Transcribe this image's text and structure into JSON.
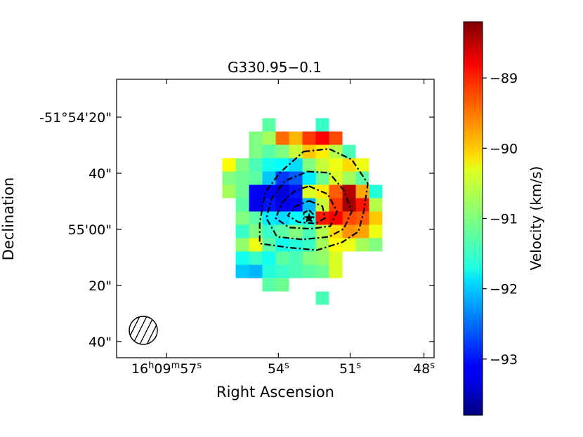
{
  "chart_data": {
    "type": "heatmap",
    "title": "G330.95−0.1",
    "xlabel": "Right Ascension",
    "ylabel": "Declination",
    "colorbar": {
      "label": "Velocity (km/s)",
      "colormap": "jet",
      "vmin": -93.8,
      "vmax": -88.2,
      "ticks": [
        {
          "value": -89,
          "label": "−89"
        },
        {
          "value": -90,
          "label": "−90"
        },
        {
          "value": -91,
          "label": "−91"
        },
        {
          "value": -92,
          "label": "−92"
        },
        {
          "value": -93,
          "label": "−93"
        }
      ]
    },
    "x_ticks": [
      {
        "col": -10.68,
        "label_parts": [
          "16",
          "h",
          "09",
          "m",
          "57",
          "s"
        ]
      },
      {
        "col": -2.3,
        "label_parts": [
          "54",
          "s"
        ]
      },
      {
        "col": 3.08,
        "label_parts": [
          "51",
          "s"
        ]
      },
      {
        "col": 8.61,
        "label_parts": [
          "48",
          "s"
        ]
      }
    ],
    "y_ticks": [
      {
        "row": -7.58,
        "label": "-51°54'20\""
      },
      {
        "row": -3.37,
        "label": "40\""
      },
      {
        "row": 0.84,
        "label": "55'00\""
      },
      {
        "row": 5.05,
        "label": "20\""
      },
      {
        "row": 9.26,
        "label": "40\""
      }
    ],
    "grid": {
      "row_start": -7,
      "col_start": -6,
      "rows": [
        [
          null,
          null,
          null,
          -91.2,
          null,
          null,
          null,
          -91.4,
          null,
          null,
          null,
          null
        ],
        [
          null,
          null,
          -91.0,
          -90.8,
          -89.5,
          -89.9,
          -89.2,
          -88.9,
          -89.3,
          null,
          null,
          null
        ],
        [
          null,
          null,
          -91.0,
          -91.2,
          -91.0,
          -90.6,
          -90.0,
          -90.2,
          -90.7,
          -91.3,
          null,
          null
        ],
        [
          -90.3,
          -91.0,
          -91.3,
          -91.6,
          -91.7,
          -91.9,
          -91.0,
          -90.6,
          -90.4,
          -90.1,
          -90.4,
          null
        ],
        [
          -91.0,
          -91.1,
          -91.2,
          -92.0,
          -92.8,
          -92.6,
          -91.8,
          -91.1,
          -90.5,
          -90.8,
          -91.2,
          null
        ],
        [
          -90.8,
          -91.1,
          -93.1,
          -93.1,
          -93.3,
          -93.0,
          -90.5,
          -90.2,
          -89.4,
          -88.5,
          -89.8,
          -91.5
        ],
        [
          null,
          -91.2,
          -93.2,
          -93.0,
          -93.2,
          -93.1,
          -92.1,
          -90.6,
          -89.2,
          -88.4,
          -89.0,
          -90.7
        ],
        [
          null,
          -91.0,
          -91.2,
          -91.8,
          -91.9,
          -91.7,
          -91.6,
          -89.0,
          -88.9,
          -89.3,
          -89.4,
          -90.0
        ],
        [
          null,
          -91.4,
          -91.0,
          -91.4,
          -91.2,
          -91.0,
          -91.3,
          -90.7,
          -90.1,
          -89.7,
          -89.8,
          -90.4
        ],
        [
          null,
          -90.9,
          -90.4,
          -91.2,
          -91.6,
          -91.5,
          -91.4,
          -90.8,
          -90.3,
          -90.4,
          -90.8,
          -91.0
        ],
        [
          null,
          -91.6,
          -91.4,
          -91.6,
          -91.2,
          -91.3,
          -91.0,
          -90.9,
          -90.5,
          null,
          null,
          null
        ],
        [
          null,
          -92.0,
          -92.1,
          -91.5,
          -91.4,
          -91.3,
          -91.2,
          -91.1,
          -90.5,
          null,
          null,
          null
        ],
        [
          null,
          null,
          null,
          -91.2,
          -91.1,
          null,
          null,
          null,
          null,
          null,
          null,
          null
        ],
        [
          null,
          null,
          null,
          null,
          null,
          null,
          null,
          -91.3,
          null,
          null,
          null,
          null
        ]
      ]
    },
    "contours": [
      [
        [
          -0.4,
          -5
        ],
        [
          1.5,
          -5.2
        ],
        [
          3.2,
          -4.4
        ],
        [
          4.4,
          -2.6
        ],
        [
          4.1,
          -0.5
        ],
        [
          3.7,
          1
        ],
        [
          2.5,
          1.8
        ],
        [
          0.6,
          2.4
        ],
        [
          -1.6,
          2.2
        ],
        [
          -3.7,
          1.9
        ],
        [
          -3.7,
          0.4
        ],
        [
          -3.3,
          -1.9
        ],
        [
          -2.2,
          -3.4
        ]
      ],
      [
        [
          -0.1,
          -3.5
        ],
        [
          1.5,
          -3.4
        ],
        [
          2.6,
          -2.1
        ],
        [
          3.2,
          -0.5
        ],
        [
          2.6,
          0.8
        ],
        [
          1.5,
          1.4
        ],
        [
          -0.5,
          1.6
        ],
        [
          -2.4,
          1.4
        ],
        [
          -3.2,
          0
        ],
        [
          -2.8,
          -1.5
        ],
        [
          -1.8,
          -2.8
        ]
      ],
      [
        [
          0,
          -2.4
        ],
        [
          1.4,
          -1.8
        ],
        [
          2.1,
          -0.5
        ],
        [
          1.6,
          0.6
        ],
        [
          0.1,
          0.8
        ],
        [
          -1.5,
          0.7
        ],
        [
          -2.5,
          0
        ],
        [
          -2,
          -1.2
        ],
        [
          -1,
          -2.1
        ]
      ],
      [
        [
          0,
          -1.3
        ],
        [
          1,
          -0.9
        ],
        [
          1.2,
          0
        ],
        [
          0.5,
          0.4
        ],
        [
          -0.8,
          0.3
        ],
        [
          -1.6,
          -0.2
        ],
        [
          -1,
          -0.9
        ]
      ],
      [
        [
          0,
          -0.6
        ],
        [
          0.4,
          -0.2
        ],
        [
          0.2,
          0.2
        ],
        [
          -0.4,
          0.1
        ],
        [
          -0.4,
          -0.4
        ]
      ]
    ],
    "marker": {
      "type": "star",
      "col": 0,
      "row": 0
    },
    "beam": {
      "shape": "ellipse",
      "fill": "hatched"
    }
  }
}
